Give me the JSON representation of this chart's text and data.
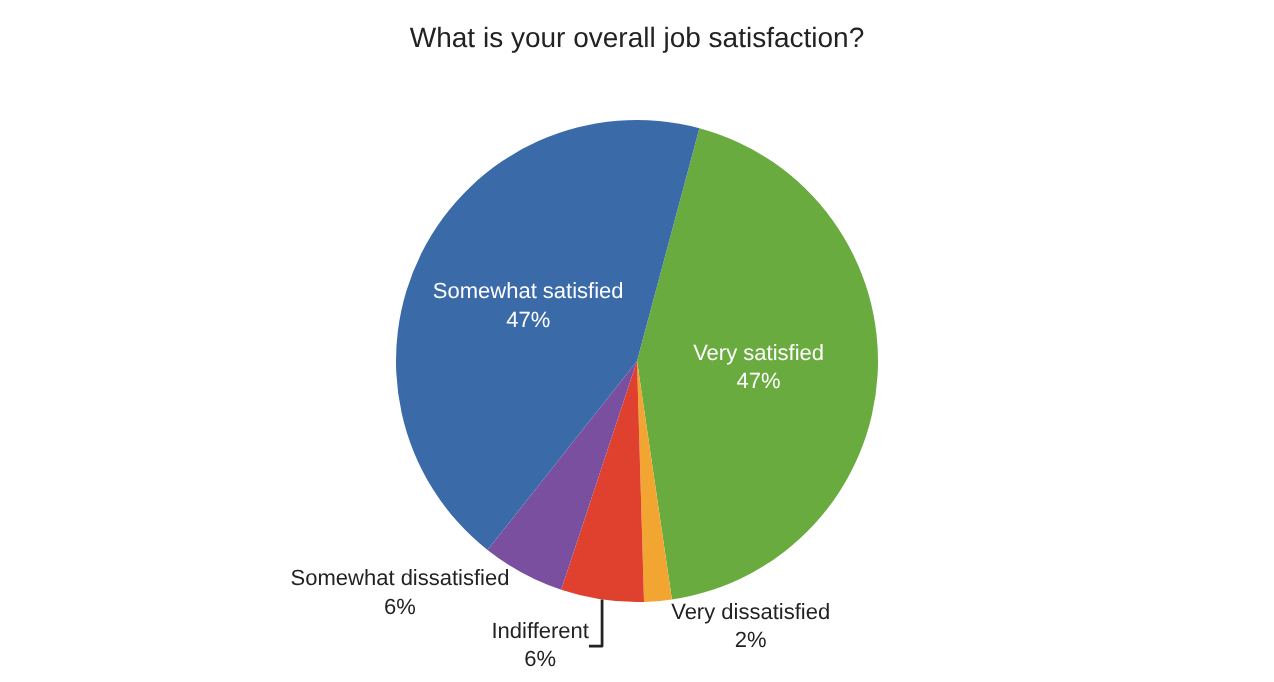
{
  "chart_data": {
    "type": "pie",
    "title": "What is your overall job satisfaction?",
    "categories": [
      "Very satisfied",
      "Very dissatisfied",
      "Indifferent",
      "Somewhat dissatisfied",
      "Somewhat satisfied"
    ],
    "values": [
      47,
      2,
      6,
      6,
      47
    ],
    "colors": [
      "#6aab3f",
      "#f2a531",
      "#e0412e",
      "#7b4fa0",
      "#3a6aa8"
    ],
    "value_labels": [
      "47%",
      "2%",
      "6%",
      "6%",
      "47%"
    ],
    "legend": false
  }
}
